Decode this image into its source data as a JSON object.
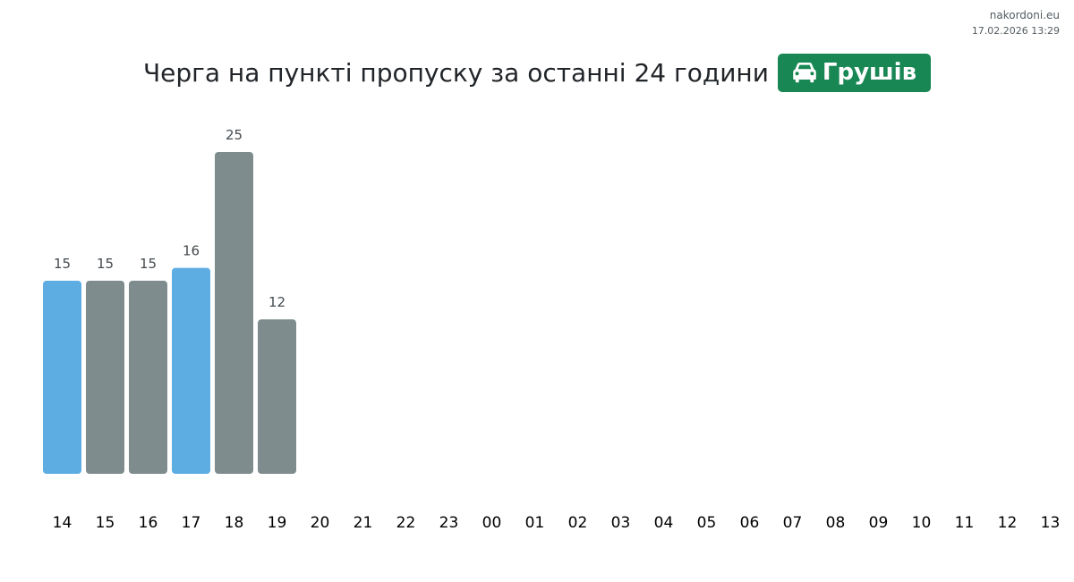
{
  "site": {
    "name": "nakordoni.eu",
    "timestamp": "17.02.2026 13:29"
  },
  "header": {
    "title": "Черга на пункті пропуску за останні 24 години",
    "badge_label": "Грушів",
    "badge_icon": "car-icon",
    "badge_color": "#198754"
  },
  "chart_data": {
    "type": "bar",
    "categories": [
      "14",
      "15",
      "16",
      "17",
      "18",
      "19",
      "20",
      "21",
      "22",
      "23",
      "00",
      "01",
      "02",
      "03",
      "04",
      "05",
      "06",
      "07",
      "08",
      "09",
      "10",
      "11",
      "12",
      "13"
    ],
    "values": [
      15,
      15,
      15,
      16,
      25,
      12,
      null,
      null,
      null,
      null,
      null,
      null,
      null,
      null,
      null,
      null,
      null,
      null,
      null,
      null,
      null,
      null,
      null,
      null
    ],
    "bar_colors": [
      "#5dade2",
      "#7f8c8d",
      "#7f8c8d",
      "#5dade2",
      "#7f8c8d",
      "#7f8c8d"
    ],
    "ylim": [
      0,
      25
    ],
    "grid": false,
    "title": "",
    "xlabel": "",
    "ylabel": ""
  }
}
